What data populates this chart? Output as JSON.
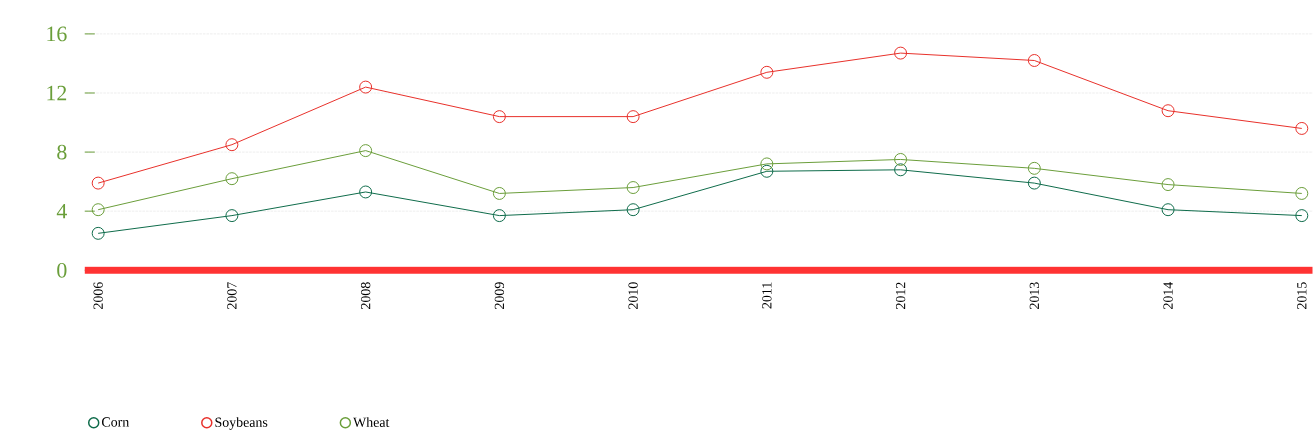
{
  "chart_data": {
    "type": "line",
    "categories": [
      "2006",
      "2007",
      "2008",
      "2009",
      "2010",
      "2011",
      "2012",
      "2013",
      "2014",
      "2015"
    ],
    "series": [
      {
        "name": "Corn",
        "color": "#0e6b4a",
        "values": [
          2.5,
          3.7,
          5.3,
          3.7,
          4.1,
          6.7,
          6.8,
          5.9,
          4.1,
          3.7
        ]
      },
      {
        "name": "Soybeans",
        "color": "#e8302a",
        "values": [
          5.9,
          8.5,
          12.4,
          10.4,
          10.4,
          13.4,
          14.7,
          14.2,
          10.8,
          9.6
        ]
      },
      {
        "name": "Wheat",
        "color": "#6a9e3a",
        "values": [
          4.1,
          6.2,
          8.1,
          5.2,
          5.6,
          7.2,
          7.5,
          6.9,
          5.8,
          5.2
        ]
      }
    ],
    "ylim": [
      0,
      16
    ],
    "yticks": [
      0,
      4,
      8,
      12,
      16
    ],
    "grid": "y",
    "legend": "bottom left",
    "marker": "circle",
    "line_style": "solid"
  }
}
